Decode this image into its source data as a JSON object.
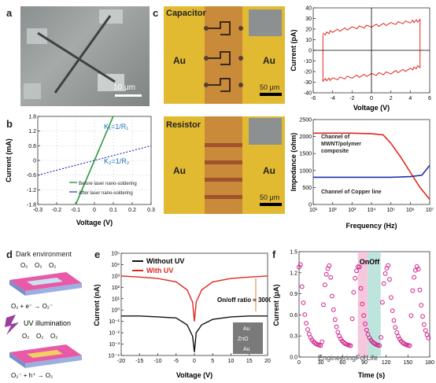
{
  "panels": {
    "a": {
      "label": "a",
      "scalebar": "10 μm"
    },
    "b": {
      "label": "b",
      "ylabel": "Current (mA)",
      "xlabel": "Voltage (V)",
      "k1": "K₁=1/R₁",
      "k2": "K₂=1/R₂",
      "legend": [
        "Before laser nano-soldering",
        "After laser nano-soldering"
      ]
    },
    "c": {
      "label": "c",
      "capacitor": "Capacitor",
      "resistor": "Resistor",
      "au": "Au",
      "scale_top": "50 μm",
      "scale_bottom": "50 μm",
      "cv_xlabel": "Voltage (V)",
      "cv_ylabel": "Current (pA)",
      "imp_xlabel": "Frequency (Hz)",
      "imp_ylabel": "Impedance (ohm)",
      "imp_label1": "Channel of MWNT/polymer composite",
      "imp_label2": "Channel of Copper line"
    },
    "d": {
      "label": "d",
      "dark": "Dark environment",
      "uv": "UV illumination",
      "o2": "O₂",
      "eq1": "O₂ + e⁻ → O₂⁻",
      "eq2": "O₂⁻ + h⁺ → O₂"
    },
    "e": {
      "label": "e",
      "ylabel": "Current (nA)",
      "xlabel": "Voltage (V)",
      "legend": [
        "Without UV",
        "With UV"
      ],
      "ratio": "On/off ratio ≈ 3000",
      "inset": [
        "Au",
        "ZnO",
        "Au"
      ]
    },
    "f": {
      "label": "f",
      "ylabel": "Current (μA)",
      "xlabel": "Time (s)",
      "on": "On",
      "off": "Off",
      "watermark": "EngineeringForLife"
    }
  },
  "chart_data": [
    {
      "type": "line",
      "panel": "b",
      "xlabel": "Voltage (V)",
      "ylabel": "Current (mA)",
      "xlim": [
        -0.3,
        0.3
      ],
      "ylim": [
        -1.8,
        1.8
      ],
      "xticks": [
        "-0.3",
        "-0.2",
        "-0.1",
        "0",
        "0.1",
        "0.2",
        "0.3"
      ],
      "yticks": [
        "-1.8",
        "-1.2",
        "-0.6",
        "0",
        "0.6",
        "1.2",
        "1.8"
      ],
      "series": [
        {
          "name": "Before laser nano-soldering",
          "x": [
            -0.3,
            0.3
          ],
          "y": [
            -1.8,
            1.8
          ]
        },
        {
          "name": "After laser nano-soldering",
          "x": [
            -0.3,
            0.3
          ],
          "y": [
            -0.6,
            0.6
          ]
        }
      ]
    },
    {
      "type": "line",
      "panel": "c-cv",
      "xlabel": "Voltage (V)",
      "ylabel": "Current (pA)",
      "xlim": [
        -6,
        6
      ],
      "ylim": [
        -40,
        40
      ],
      "xticks": [
        "-6",
        "-4",
        "-2",
        "0",
        "2",
        "4",
        "6"
      ],
      "yticks": [
        "-40",
        "-30",
        "-20",
        "-10",
        "0",
        "10",
        "20",
        "30",
        "40"
      ],
      "series": [
        {
          "name": "",
          "x": [
            -5,
            -4,
            -2,
            0,
            2,
            4,
            5,
            5,
            4,
            2,
            0,
            -2,
            -4,
            -5,
            -5
          ],
          "y": [
            15,
            18,
            21,
            23,
            25,
            27,
            28,
            -15,
            -18,
            -21,
            -23,
            -25,
            -27,
            -28,
            15
          ]
        }
      ]
    },
    {
      "type": "line",
      "panel": "c-imp",
      "xlabel": "Frequency (Hz)",
      "ylabel": "Impedance (ohm)",
      "xlim": [
        1,
        7
      ],
      "ylim": [
        0,
        2500
      ],
      "xticks": [
        "10¹",
        "10²",
        "10³",
        "10⁴",
        "10⁵",
        "10⁶",
        "10⁷"
      ],
      "yticks": [
        "0",
        "500",
        "1000",
        "1500",
        "2000",
        "2500"
      ],
      "series": [
        {
          "name": "Channel of MWNT/polymer composite",
          "x": [
            1,
            2,
            3,
            4,
            4.6,
            5,
            5.5,
            6,
            6.5,
            7
          ],
          "y": [
            2100,
            2100,
            2100,
            2080,
            2050,
            1800,
            1400,
            950,
            500,
            150
          ]
        },
        {
          "name": "Channel of Copper line",
          "x": [
            1,
            2,
            3,
            4,
            5,
            6,
            6.6,
            7
          ],
          "y": [
            800,
            800,
            800,
            800,
            800,
            820,
            860,
            1150
          ]
        }
      ]
    },
    {
      "type": "line",
      "panel": "e",
      "xlabel": "Voltage (V)",
      "ylabel": "Current (nA)",
      "xlim": [
        -20,
        20
      ],
      "yscale": "log",
      "ylim": [
        0.0001,
        100000
      ],
      "xticks": [
        "-20",
        "-15",
        "-10",
        "-5",
        "0",
        "5",
        "10",
        "15",
        "20"
      ],
      "yticks": [
        "10⁻⁴",
        "10⁻³",
        "10⁻²",
        "10⁻¹",
        "10⁰",
        "10¹",
        "10²",
        "10³",
        "10⁴",
        "10⁵"
      ],
      "series": [
        {
          "name": "Without UV",
          "x": [
            -20,
            -15,
            -10,
            -5,
            -2,
            -0.5,
            0,
            0.5,
            2,
            5,
            10,
            15,
            20
          ],
          "y": [
            0.3,
            0.3,
            0.25,
            0.2,
            0.05,
            0.005,
            0.0002,
            0.01,
            0.05,
            0.15,
            0.25,
            0.3,
            0.3
          ]
        },
        {
          "name": "With UV",
          "x": [
            -20,
            -15,
            -10,
            -5,
            -2,
            -0.5,
            0,
            0.5,
            2,
            5,
            10,
            15,
            20
          ],
          "y": [
            1000,
            800,
            600,
            300,
            60,
            5,
            0.1,
            5,
            60,
            300,
            600,
            800,
            1000
          ]
        }
      ]
    },
    {
      "type": "scatter",
      "panel": "f",
      "xlabel": "Time (s)",
      "ylabel": "Current (μA)",
      "xlim": [
        0,
        200
      ],
      "ylim": [
        0,
        1.5
      ],
      "xticks": [
        "0",
        "30",
        "60",
        "90",
        "120",
        "150",
        "180"
      ],
      "yticks": [
        "0.0",
        "0.3",
        "0.6",
        "0.9",
        "1.2",
        "1.5"
      ],
      "on_interval": [
        90,
        105
      ],
      "off_interval": [
        105,
        125
      ]
    }
  ]
}
